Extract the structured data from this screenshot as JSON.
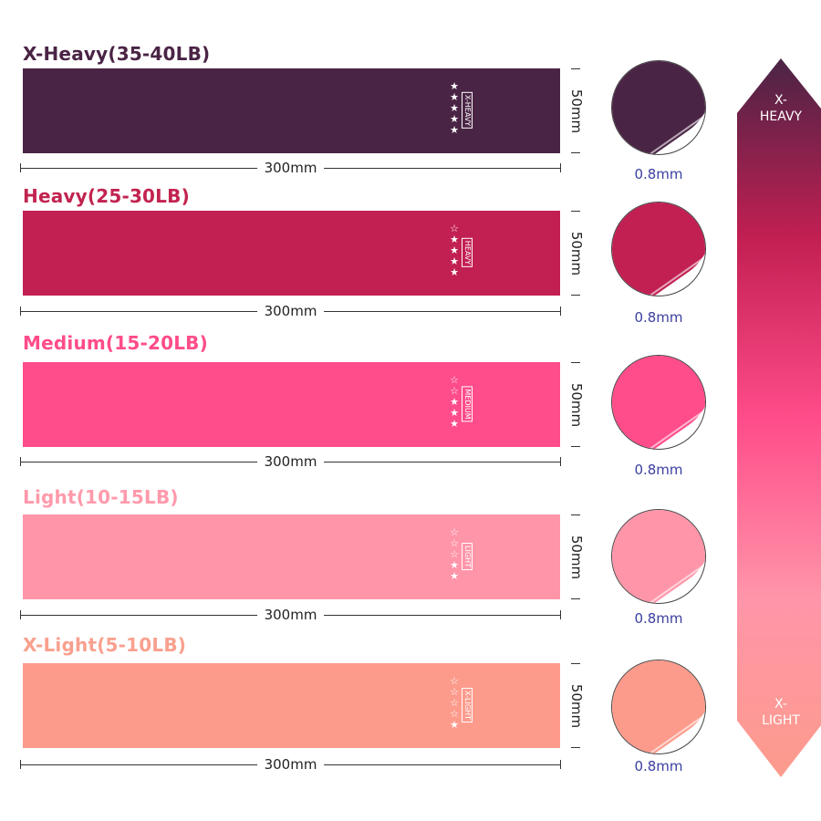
{
  "bands": [
    {
      "title": "X-Heavy(35-40LB)",
      "level": "X-HEAVY",
      "stars": 5,
      "length": "300mm",
      "width": "50mm",
      "thickness": "0.8mm",
      "color": "#4a2445",
      "title_color": "#4a2445"
    },
    {
      "title": "Heavy(25-30LB)",
      "level": "HEAVY",
      "stars": 4,
      "length": "300mm",
      "width": "50mm",
      "thickness": "0.8mm",
      "color": "#c21f52",
      "title_color": "#c2234f"
    },
    {
      "title": "Medium(15-20LB)",
      "level": "MEDIUM",
      "stars": 3,
      "length": "300mm",
      "width": "50mm",
      "thickness": "0.8mm",
      "color": "#ff4c8a",
      "title_color": "#ff4c8a"
    },
    {
      "title": "Light(10-15LB)",
      "level": "LIGHT",
      "stars": 2,
      "length": "300mm",
      "width": "50mm",
      "thickness": "0.8mm",
      "color": "#ff95a9",
      "title_color": "#ff9aab"
    },
    {
      "title": "X-Light(5-10LB)",
      "level": "X-LIGHT",
      "stars": 1,
      "length": "300mm",
      "width": "50mm",
      "thickness": "0.8mm",
      "color": "#fc9b8c",
      "title_color": "#f9a08e"
    }
  ],
  "scale_arrow": {
    "top_label": "X-\nHEAVY",
    "bottom_label": "X-\nLIGHT",
    "gradient": [
      "#4a2445",
      "#c21f52",
      "#ff4c8a",
      "#ff95a9",
      "#fc9b8c"
    ]
  }
}
